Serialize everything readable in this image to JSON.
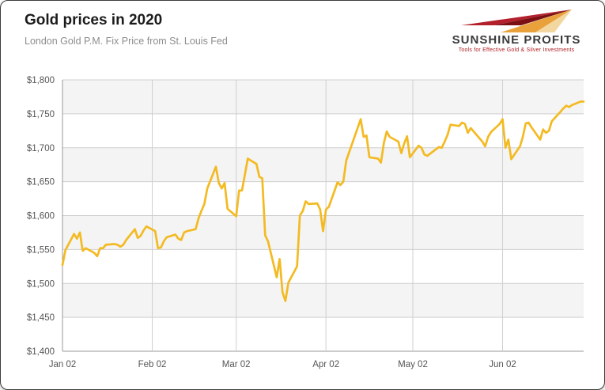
{
  "header": {
    "title": "Gold prices in 2020",
    "subtitle": "London Gold P.M. Fix Price from St. Louis Fed"
  },
  "logo": {
    "name": "SUNSHINE PROFITS",
    "tagline": "Tools for Effective Gold & Silver Investments",
    "colors": {
      "red": "#b3202c",
      "dark_red": "#7a1014",
      "gold": "#e9a13b",
      "pale_gold": "#f3d7a0"
    }
  },
  "chart_data": {
    "type": "line",
    "title": "Gold prices in 2020",
    "xlabel": "",
    "ylabel": "",
    "ylim": [
      1400,
      1800
    ],
    "xlim_dates": [
      "2020-01-02",
      "2020-06-30"
    ],
    "grid": true,
    "line_color": "#F3BA22",
    "grid_color": "#cfcfcf",
    "band_color": "#f4f4f4",
    "axis_color": "#9a9a9a",
    "label_color": "#555555",
    "y_ticks": [
      1400,
      1450,
      1500,
      1550,
      1600,
      1650,
      1700,
      1750,
      1800
    ],
    "y_tick_labels": [
      "$1,400",
      "$1,450",
      "$1,500",
      "$1,550",
      "$1,600",
      "$1,650",
      "$1,700",
      "$1,750",
      "$1,800"
    ],
    "x_ticks": [
      {
        "label": "Jan 02",
        "date": "2020-01-02"
      },
      {
        "label": "Feb 02",
        "date": "2020-02-02"
      },
      {
        "label": "Mar 02",
        "date": "2020-03-02"
      },
      {
        "label": "Apr 02",
        "date": "2020-04-02"
      },
      {
        "label": "May 02",
        "date": "2020-05-02"
      },
      {
        "label": "Jun 02",
        "date": "2020-06-02"
      }
    ],
    "series": [
      {
        "name": "London Gold P.M. Fix (USD)",
        "dates": [
          "2020-01-02",
          "2020-01-03",
          "2020-01-06",
          "2020-01-07",
          "2020-01-08",
          "2020-01-09",
          "2020-01-10",
          "2020-01-13",
          "2020-01-14",
          "2020-01-15",
          "2020-01-16",
          "2020-01-17",
          "2020-01-20",
          "2020-01-21",
          "2020-01-22",
          "2020-01-23",
          "2020-01-24",
          "2020-01-27",
          "2020-01-28",
          "2020-01-29",
          "2020-01-30",
          "2020-01-31",
          "2020-02-03",
          "2020-02-04",
          "2020-02-05",
          "2020-02-06",
          "2020-02-07",
          "2020-02-10",
          "2020-02-11",
          "2020-02-12",
          "2020-02-13",
          "2020-02-14",
          "2020-02-17",
          "2020-02-18",
          "2020-02-19",
          "2020-02-20",
          "2020-02-21",
          "2020-02-24",
          "2020-02-25",
          "2020-02-26",
          "2020-02-27",
          "2020-02-28",
          "2020-03-02",
          "2020-03-03",
          "2020-03-04",
          "2020-03-05",
          "2020-03-06",
          "2020-03-09",
          "2020-03-10",
          "2020-03-11",
          "2020-03-12",
          "2020-03-13",
          "2020-03-16",
          "2020-03-17",
          "2020-03-18",
          "2020-03-19",
          "2020-03-20",
          "2020-03-23",
          "2020-03-24",
          "2020-03-25",
          "2020-03-26",
          "2020-03-27",
          "2020-03-30",
          "2020-03-31",
          "2020-04-01",
          "2020-04-02",
          "2020-04-03",
          "2020-04-06",
          "2020-04-07",
          "2020-04-08",
          "2020-04-09",
          "2020-04-14",
          "2020-04-15",
          "2020-04-16",
          "2020-04-17",
          "2020-04-20",
          "2020-04-21",
          "2020-04-22",
          "2020-04-23",
          "2020-04-24",
          "2020-04-27",
          "2020-04-28",
          "2020-04-29",
          "2020-04-30",
          "2020-05-01",
          "2020-05-04",
          "2020-05-05",
          "2020-05-06",
          "2020-05-07",
          "2020-05-11",
          "2020-05-12",
          "2020-05-13",
          "2020-05-14",
          "2020-05-15",
          "2020-05-18",
          "2020-05-19",
          "2020-05-20",
          "2020-05-21",
          "2020-05-22",
          "2020-05-26",
          "2020-05-27",
          "2020-05-28",
          "2020-05-29",
          "2020-06-01",
          "2020-06-02",
          "2020-06-03",
          "2020-06-04",
          "2020-06-05",
          "2020-06-08",
          "2020-06-09",
          "2020-06-10",
          "2020-06-11",
          "2020-06-12",
          "2020-06-15",
          "2020-06-16",
          "2020-06-17",
          "2020-06-18",
          "2020-06-19",
          "2020-06-22",
          "2020-06-23",
          "2020-06-24",
          "2020-06-25",
          "2020-06-26",
          "2020-06-29",
          "2020-06-30"
        ],
        "values": [
          1527,
          1549,
          1573,
          1566,
          1575,
          1548,
          1552,
          1545,
          1540,
          1552,
          1552,
          1557,
          1558,
          1557,
          1554,
          1557,
          1564,
          1580,
          1567,
          1570,
          1578,
          1584,
          1577,
          1552,
          1553,
          1562,
          1568,
          1572,
          1566,
          1564,
          1575,
          1577,
          1580,
          1596,
          1607,
          1617,
          1640,
          1672,
          1648,
          1640,
          1648,
          1610,
          1599,
          1637,
          1637,
          1660,
          1684,
          1676,
          1657,
          1655,
          1571,
          1562,
          1509,
          1536,
          1487,
          1474,
          1501,
          1525,
          1600,
          1607,
          1621,
          1617,
          1618,
          1609,
          1577,
          1609,
          1613,
          1649,
          1645,
          1650,
          1681,
          1742,
          1716,
          1718,
          1686,
          1684,
          1678,
          1707,
          1724,
          1716,
          1709,
          1692,
          1706,
          1717,
          1686,
          1703,
          1700,
          1690,
          1688,
          1701,
          1700,
          1709,
          1719,
          1734,
          1732,
          1737,
          1735,
          1722,
          1729,
          1709,
          1702,
          1716,
          1723,
          1735,
          1742,
          1700,
          1712,
          1683,
          1702,
          1716,
          1736,
          1737,
          1730,
          1712,
          1727,
          1722,
          1725,
          1739,
          1753,
          1758,
          1762,
          1760,
          1763,
          1768,
          1768
        ]
      }
    ]
  }
}
